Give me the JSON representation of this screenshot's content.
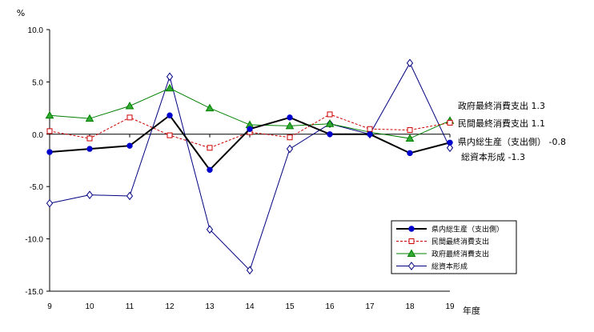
{
  "chart_data": {
    "type": "line",
    "ylabel": "%",
    "xlabel": "年度",
    "x": [
      "9",
      "10",
      "11",
      "12",
      "13",
      "14",
      "15",
      "16",
      "17",
      "18",
      "19"
    ],
    "ylim": [
      -15,
      10
    ],
    "yticks": [
      "10.0",
      "5.0",
      "0.0",
      "-5.0",
      "-10.0",
      "-15.0"
    ],
    "ytick_values": [
      10,
      5,
      0,
      -5,
      -10,
      -15
    ],
    "series": [
      {
        "name": "県内総生産（支出側）",
        "color": "#000000",
        "marker_fill": "#0000cc",
        "marker": "circle",
        "dash": "",
        "width": 2,
        "values": [
          -1.7,
          -1.4,
          -1.1,
          1.8,
          -3.4,
          0.5,
          1.6,
          0.0,
          0.0,
          -1.8,
          -0.8
        ]
      },
      {
        "name": "民間最終消費支出",
        "color": "#cc0000",
        "marker_fill": "#ffffff",
        "marker": "square",
        "dash": "3,2",
        "width": 1,
        "values": [
          0.3,
          -0.4,
          1.6,
          -0.1,
          -1.3,
          0.2,
          -0.3,
          1.9,
          0.5,
          0.4,
          1.1
        ]
      },
      {
        "name": "政府最終消費支出",
        "color": "#008000",
        "marker_fill": "#33aa33",
        "marker": "triangle",
        "dash": "",
        "width": 1,
        "values": [
          1.8,
          1.5,
          2.7,
          4.4,
          2.5,
          0.9,
          0.8,
          1.0,
          0.2,
          -0.4,
          1.3
        ]
      },
      {
        "name": "総資本形成",
        "color": "#000080",
        "marker_fill": "#ffffff",
        "marker": "diamond",
        "dash": "",
        "width": 1,
        "values": [
          -6.6,
          -5.8,
          -5.9,
          5.5,
          -9.1,
          -13.0,
          -1.4,
          1.0,
          0.0,
          6.8,
          -1.3
        ]
      }
    ],
    "end_labels": [
      {
        "text": "政府最終消費支出 1.3"
      },
      {
        "text": "民間最終消費支出 1.1"
      },
      {
        "text": "県内総生産（支出側） -0.8"
      },
      {
        "text": "総資本形成 -1.3"
      }
    ],
    "legend_position": "bottom-right",
    "grid": false
  }
}
